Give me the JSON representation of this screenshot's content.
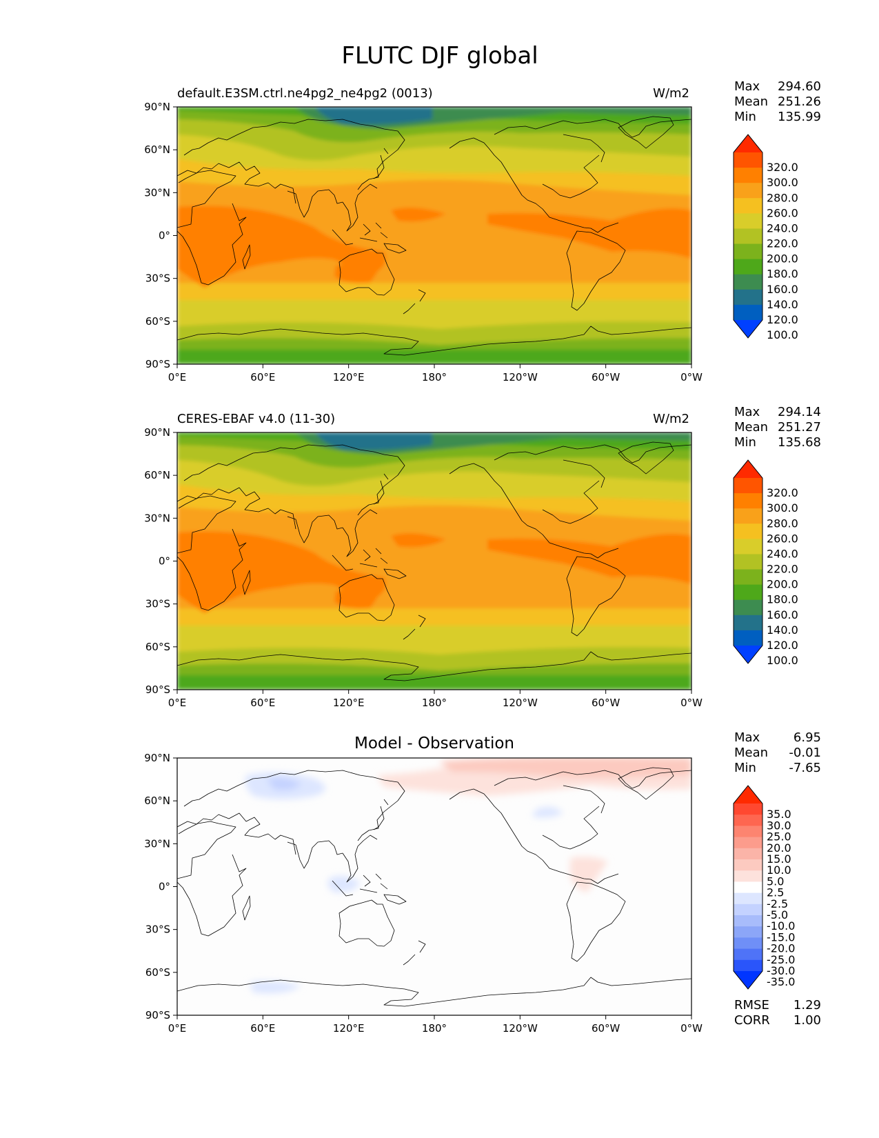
{
  "title": "FLUTC DJF global",
  "lon_ticks": [
    "0°E",
    "60°E",
    "120°E",
    "180°",
    "120°W",
    "60°W",
    "0°W"
  ],
  "lat_ticks": [
    "90°N",
    "60°N",
    "30°N",
    "0°",
    "30°S",
    "60°S",
    "90°S"
  ],
  "panels": [
    {
      "id": "model",
      "left_title": "default.E3SM.ctrl.ne4pg2_ne4pg2 (0013)",
      "center_title": "",
      "right_title": "W/m2",
      "stats": [
        {
          "label": "Max",
          "value": "294.60"
        },
        {
          "label": "Mean",
          "value": "251.26"
        },
        {
          "label": "Min",
          "value": "135.99"
        }
      ],
      "colorbar": {
        "labels": [
          "320.0",
          "300.0",
          "280.0",
          "260.0",
          "240.0",
          "220.0",
          "200.0",
          "180.0",
          "160.0",
          "140.0",
          "120.0",
          "100.0"
        ],
        "colors": [
          "#ff2a00",
          "#ff5500",
          "#ff8000",
          "#f9a11a",
          "#f5c020",
          "#d9cd2a",
          "#b2c223",
          "#7cb21c",
          "#4ea81a",
          "#3d8c50",
          "#23728a",
          "#005fc0",
          "#0040ff"
        ]
      }
    },
    {
      "id": "obs",
      "left_title": "CERES-EBAF v4.0 (11-30)",
      "center_title": "",
      "right_title": "W/m2",
      "stats": [
        {
          "label": "Max",
          "value": "294.14"
        },
        {
          "label": "Mean",
          "value": "251.27"
        },
        {
          "label": "Min",
          "value": "135.68"
        }
      ],
      "colorbar": {
        "labels": [
          "320.0",
          "300.0",
          "280.0",
          "260.0",
          "240.0",
          "220.0",
          "200.0",
          "180.0",
          "160.0",
          "140.0",
          "120.0",
          "100.0"
        ],
        "colors": [
          "#ff2a00",
          "#ff5500",
          "#ff8000",
          "#f9a11a",
          "#f5c020",
          "#d9cd2a",
          "#b2c223",
          "#7cb21c",
          "#4ea81a",
          "#3d8c50",
          "#23728a",
          "#005fc0",
          "#0040ff"
        ]
      }
    },
    {
      "id": "diff",
      "left_title": "",
      "center_title": "Model - Observation",
      "right_title": "",
      "stats": [
        {
          "label": "Max",
          "value": "6.95"
        },
        {
          "label": "Mean",
          "value": "-0.01"
        },
        {
          "label": "Min",
          "value": "-7.65"
        }
      ],
      "extra_stats": [
        {
          "label": "RMSE",
          "value": "1.29"
        },
        {
          "label": "CORR",
          "value": "1.00"
        }
      ],
      "colorbar": {
        "labels": [
          "35.0",
          "30.0",
          "25.0",
          "20.0",
          "15.0",
          "10.0",
          "5.0",
          "2.5",
          "-2.5",
          "-5.0",
          "-10.0",
          "-15.0",
          "-20.0",
          "-25.0",
          "-30.0",
          "-35.0"
        ],
        "colors": [
          "#ff2a00",
          "#ff4830",
          "#fe6650",
          "#fd8470",
          "#fc9c8c",
          "#fbb4a8",
          "#fccac0",
          "#fde2dc",
          "#ffffff",
          "#dde6ff",
          "#c4d2ff",
          "#a8bcfb",
          "#8ca6f8",
          "#6f8ff7",
          "#4f73f7",
          "#2a55fa",
          "#0035ff"
        ]
      }
    }
  ]
}
